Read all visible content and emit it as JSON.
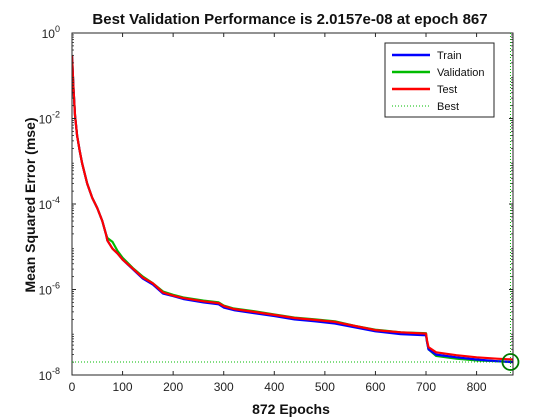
{
  "chart_data": {
    "type": "line",
    "title": "Best Validation Performance is 2.0157e-08 at epoch 867",
    "xlabel": "872 Epochs",
    "ylabel": "Mean Squared Error  (mse)",
    "xlim": [
      0,
      872
    ],
    "ylim": [
      1e-08,
      1
    ],
    "yscale": "log",
    "x_ticks": [
      0,
      100,
      200,
      300,
      400,
      500,
      600,
      700,
      800
    ],
    "y_ticks": [
      {
        "value": 1,
        "base": "10",
        "exp": "0"
      },
      {
        "value": 0.01,
        "base": "10",
        "exp": "-2"
      },
      {
        "value": 0.0001,
        "base": "10",
        "exp": "-4"
      },
      {
        "value": 1e-06,
        "base": "10",
        "exp": "-6"
      },
      {
        "value": 1e-08,
        "base": "10",
        "exp": "-8"
      }
    ],
    "grid": false,
    "legend_position": "top-right",
    "series": [
      {
        "name": "Train",
        "color": "#0000ff",
        "x": [
          0,
          3,
          6,
          10,
          15,
          20,
          30,
          40,
          50,
          60,
          67,
          70,
          80,
          90,
          100,
          120,
          140,
          160,
          180,
          200,
          220,
          260,
          290,
          300,
          320,
          360,
          400,
          440,
          480,
          520,
          560,
          600,
          650,
          700,
          702,
          705,
          720,
          760,
          800,
          840,
          872
        ],
        "y": [
          0.3,
          0.05,
          0.012,
          0.004,
          0.0018,
          0.0009,
          0.0003,
          0.00014,
          8e-05,
          4e-05,
          2e-05,
          1.4e-05,
          9e-06,
          7e-06,
          5e-06,
          3e-06,
          1.8e-06,
          1.3e-06,
          8e-07,
          7e-07,
          6e-07,
          5e-07,
          4.5e-07,
          3.8e-07,
          3.3e-07,
          2.8e-07,
          2.4e-07,
          2e-07,
          1.8e-07,
          1.6e-07,
          1.3e-07,
          1.05e-07,
          9e-08,
          8.5e-08,
          6e-08,
          4e-08,
          3e-08,
          2.6e-08,
          2.3e-08,
          2.1e-08,
          2e-08
        ]
      },
      {
        "name": "Validation",
        "color": "#00bb00",
        "x": [
          0,
          3,
          6,
          10,
          15,
          20,
          30,
          40,
          50,
          60,
          67,
          70,
          80,
          90,
          100,
          120,
          140,
          160,
          180,
          200,
          220,
          260,
          290,
          300,
          320,
          360,
          400,
          440,
          480,
          520,
          560,
          600,
          650,
          700,
          702,
          705,
          720,
          760,
          800,
          840,
          867,
          872
        ],
        "y": [
          0.3,
          0.05,
          0.012,
          0.004,
          0.0018,
          0.0009,
          0.0003,
          0.00014,
          8e-05,
          4e-05,
          2e-05,
          1.6e-05,
          1.3e-05,
          8e-06,
          5.5e-06,
          3.2e-06,
          2e-06,
          1.4e-06,
          9e-07,
          7.5e-07,
          6.5e-07,
          5.5e-07,
          5e-07,
          4.2e-07,
          3.6e-07,
          3.1e-07,
          2.6e-07,
          2.2e-07,
          2e-07,
          1.8e-07,
          1.4e-07,
          1.15e-07,
          1e-07,
          9.5e-08,
          6e-08,
          4e-08,
          2.8e-08,
          2.4e-08,
          2.2e-08,
          2.1e-08,
          2.0157e-08,
          2.03e-08
        ]
      },
      {
        "name": "Test",
        "color": "#ff0000",
        "x": [
          0,
          3,
          6,
          10,
          15,
          20,
          30,
          40,
          50,
          60,
          67,
          70,
          80,
          90,
          100,
          120,
          140,
          160,
          180,
          200,
          220,
          260,
          290,
          300,
          320,
          360,
          400,
          440,
          480,
          520,
          560,
          600,
          650,
          700,
          702,
          705,
          720,
          760,
          800,
          840,
          872
        ],
        "y": [
          0.3,
          0.05,
          0.012,
          0.004,
          0.0018,
          0.0009,
          0.0003,
          0.00014,
          8e-05,
          4e-05,
          2e-05,
          1.4e-05,
          9e-06,
          7e-06,
          5e-06,
          3.1e-06,
          1.9e-06,
          1.4e-06,
          8.5e-07,
          7.2e-07,
          6.3e-07,
          5.3e-07,
          4.8e-07,
          4.1e-07,
          3.5e-07,
          3e-07,
          2.55e-07,
          2.15e-07,
          1.95e-07,
          1.75e-07,
          1.4e-07,
          1.12e-07,
          1e-07,
          9.3e-08,
          6.5e-08,
          4.5e-08,
          3.4e-08,
          2.9e-08,
          2.6e-08,
          2.4e-08,
          2.3e-08
        ]
      },
      {
        "name": "Best",
        "color": "#00bb00",
        "style": "dotted",
        "best_epoch": 867,
        "best_value": 2.0157e-08
      }
    ]
  }
}
